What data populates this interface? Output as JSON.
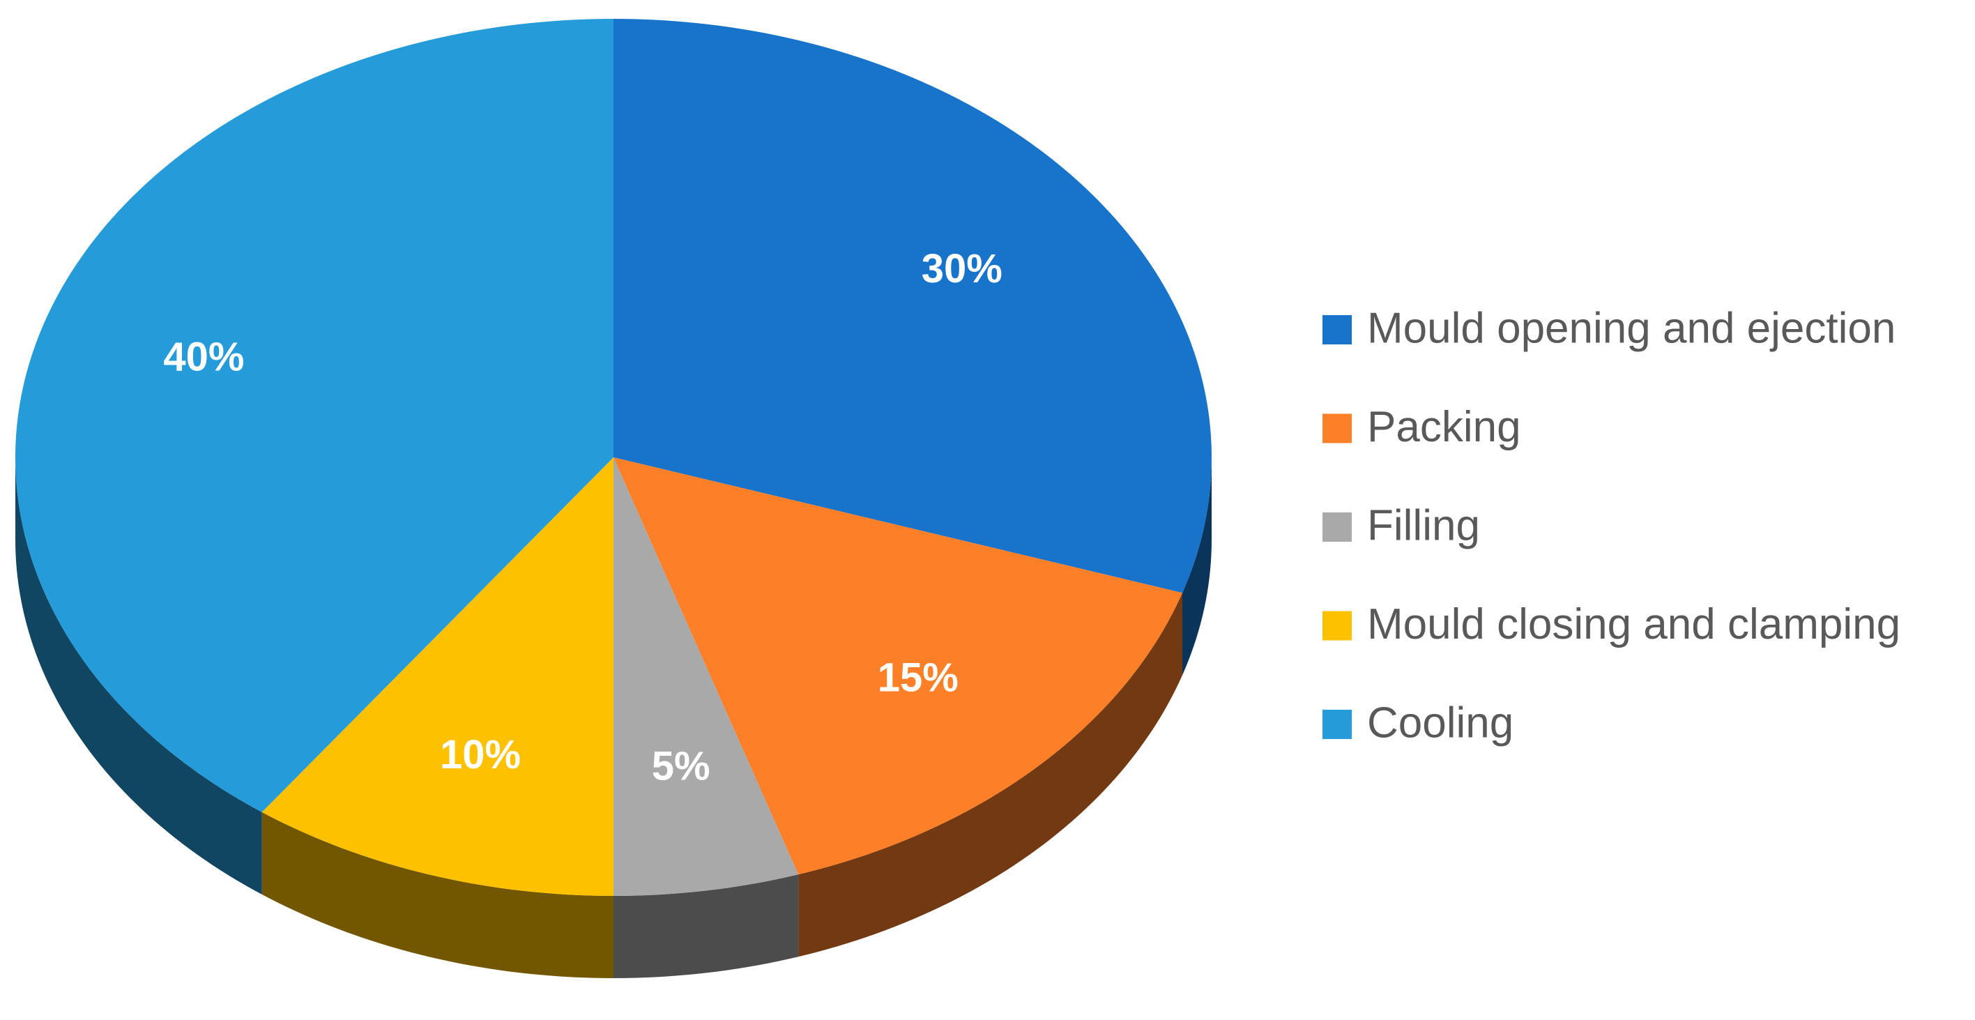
{
  "chart_data": {
    "type": "pie",
    "categories": [
      "Mould opening and ejection",
      "Packing",
      "Filling",
      "Mould closing and clamping",
      "Cooling"
    ],
    "values": [
      30,
      15,
      5,
      10,
      40
    ],
    "value_labels": [
      "30%",
      "15%",
      "5%",
      "10%",
      "40%"
    ],
    "colors": [
      "#1873ca",
      "#fd7f27",
      "#a9a9a9",
      "#fdc100",
      "#259bd9"
    ],
    "legend": "right"
  }
}
